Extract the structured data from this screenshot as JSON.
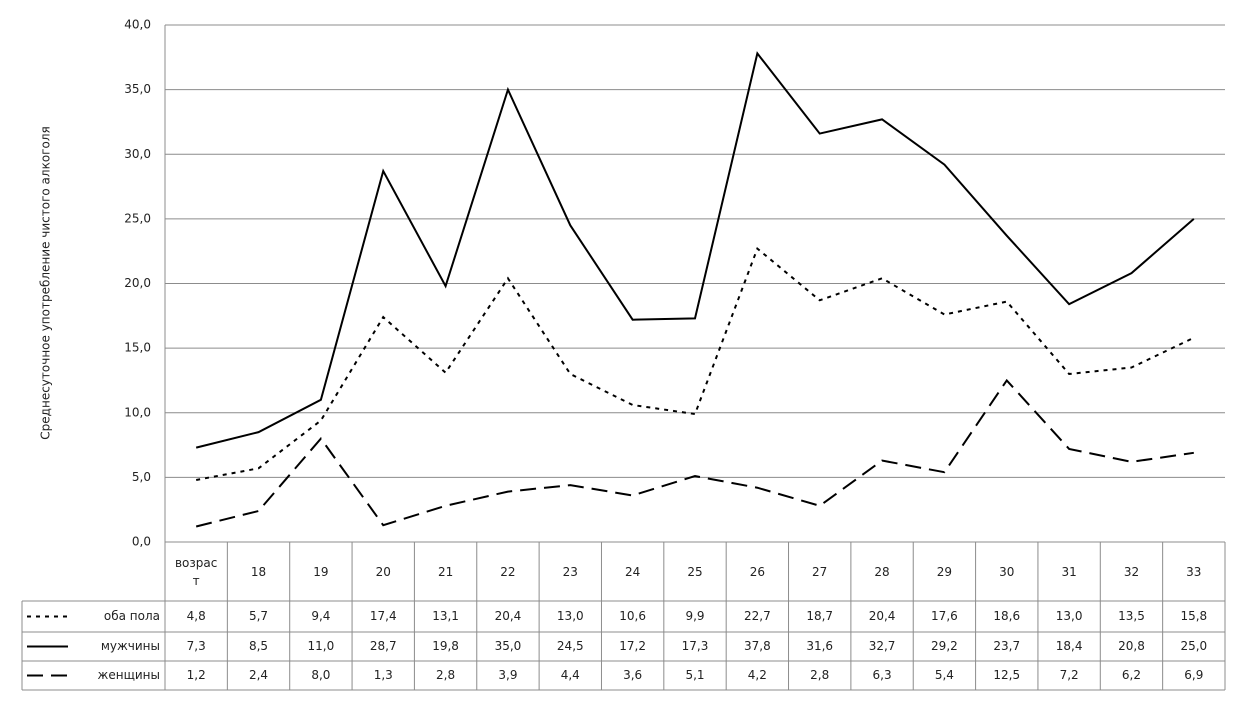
{
  "chart_data": {
    "type": "line",
    "y_label": "Среднесуточное употребление чистого алкоголя",
    "categories": [
      "возраст",
      "18",
      "19",
      "20",
      "21",
      "22",
      "23",
      "24",
      "25",
      "26",
      "27",
      "28",
      "29",
      "30",
      "31",
      "32",
      "33"
    ],
    "series": [
      {
        "name": "оба пола",
        "color": "#000000",
        "dash": "dotted",
        "values": [
          4.8,
          5.7,
          9.4,
          17.4,
          13.1,
          20.4,
          13.0,
          10.6,
          9.9,
          22.7,
          18.7,
          20.4,
          17.6,
          18.6,
          13.0,
          13.5,
          15.8
        ],
        "value_labels": [
          "4,8",
          "5,7",
          "9,4",
          "17,4",
          "13,1",
          "20,4",
          "13,0",
          "10,6",
          "9,9",
          "22,7",
          "18,7",
          "20,4",
          "17,6",
          "18,6",
          "13,0",
          "13,5",
          "15,8"
        ]
      },
      {
        "name": "мужчины",
        "color": "#000000",
        "dash": "solid",
        "values": [
          7.3,
          8.5,
          11.0,
          28.7,
          19.8,
          35.0,
          24.5,
          17.2,
          17.3,
          37.8,
          31.6,
          32.7,
          29.2,
          23.7,
          18.4,
          20.8,
          25.0
        ],
        "value_labels": [
          "7,3",
          "8,5",
          "11,0",
          "28,7",
          "19,8",
          "35,0",
          "24,5",
          "17,2",
          "17,3",
          "37,8",
          "31,6",
          "32,7",
          "29,2",
          "23,7",
          "18,4",
          "20,8",
          "25,0"
        ]
      },
      {
        "name": "женщины",
        "color": "#000000",
        "dash": "dashed",
        "values": [
          1.2,
          2.4,
          8.0,
          1.3,
          2.8,
          3.9,
          4.4,
          3.6,
          5.1,
          4.2,
          2.8,
          6.3,
          5.4,
          12.5,
          7.2,
          6.2,
          6.9
        ],
        "value_labels": [
          "1,2",
          "2,4",
          "8,0",
          "1,3",
          "2,8",
          "3,9",
          "4,4",
          "3,6",
          "5,1",
          "4,2",
          "2,8",
          "6,3",
          "5,4",
          "12,5",
          "7,2",
          "6,2",
          "6,9"
        ]
      }
    ],
    "ylim": [
      0,
      40
    ],
    "yticks": [
      {
        "value": 0,
        "label": "0,0"
      },
      {
        "value": 5,
        "label": "5,0"
      },
      {
        "value": 10,
        "label": "10,0"
      },
      {
        "value": 15,
        "label": "15,0"
      },
      {
        "value": 20,
        "label": "20,0"
      },
      {
        "value": 25,
        "label": "25,0"
      },
      {
        "value": 30,
        "label": "30,0"
      },
      {
        "value": 35,
        "label": "35,0"
      },
      {
        "value": 40,
        "label": "40,0"
      }
    ],
    "grid": true
  }
}
